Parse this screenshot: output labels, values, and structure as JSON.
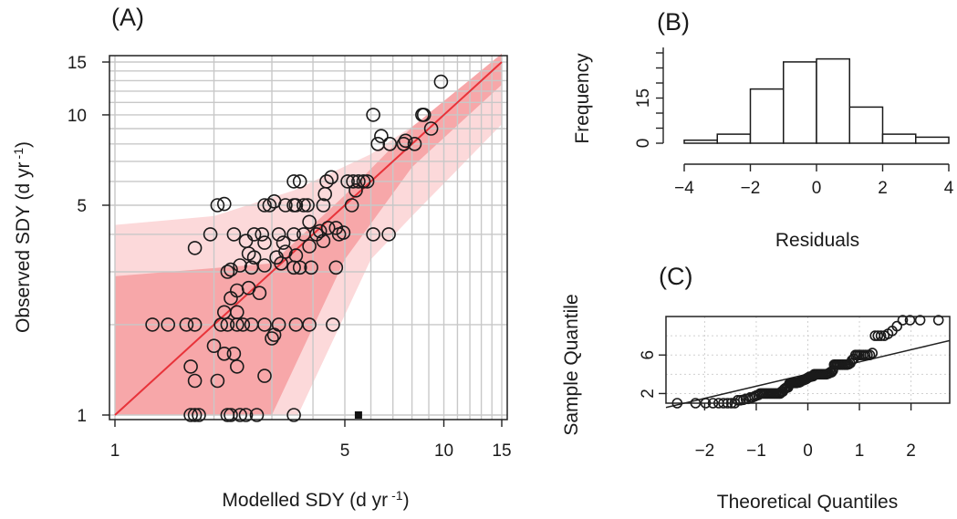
{
  "colors": {
    "regression_line": "#e8333a",
    "confidence_band": "#f7a7a9",
    "prediction_band": "#fcd9da",
    "points": "#1a1a1a"
  },
  "chart_data": [
    {
      "panel": "(A)",
      "type": "scatter",
      "xlabel": "Modelled SDY (d yr -1)",
      "ylabel": "Observed SDY (d yr -1)",
      "xscale": "log",
      "yscale": "log",
      "xlim": [
        1,
        15
      ],
      "ylim": [
        1,
        15
      ],
      "xticks": [
        1,
        5,
        10,
        15
      ],
      "yticks": [
        1,
        5,
        10,
        15
      ],
      "grid": true,
      "fit_line": [
        [
          1,
          1
        ],
        [
          15,
          15
        ]
      ],
      "confidence_band_lower": [
        [
          1,
          1
        ],
        [
          3,
          1
        ],
        [
          5,
          3.3
        ],
        [
          8,
          6.7
        ],
        [
          15,
          12.6
        ]
      ],
      "confidence_band_upper": [
        [
          1,
          2.9
        ],
        [
          3,
          3.2
        ],
        [
          5,
          5.4
        ],
        [
          8,
          9.1
        ],
        [
          15,
          16
        ]
      ],
      "prediction_band_lower": [
        [
          1,
          1
        ],
        [
          3.6,
          1
        ],
        [
          6,
          3.3
        ],
        [
          8,
          4.6
        ],
        [
          15,
          9.3
        ]
      ],
      "prediction_band_upper": [
        [
          1,
          4.3
        ],
        [
          2,
          4.6
        ],
        [
          3.5,
          5.6
        ],
        [
          6,
          7.4
        ],
        [
          10,
          10.8
        ],
        [
          15,
          16
        ]
      ],
      "points": [
        [
          1.7,
          1
        ],
        [
          1.75,
          1
        ],
        [
          1.8,
          1
        ],
        [
          2.2,
          1
        ],
        [
          2.25,
          1
        ],
        [
          2.4,
          1
        ],
        [
          2.5,
          1
        ],
        [
          2.7,
          1
        ],
        [
          3.5,
          1
        ],
        [
          1.75,
          1.3
        ],
        [
          2.05,
          1.3
        ],
        [
          1.7,
          1.45
        ],
        [
          2.35,
          1.45
        ],
        [
          2.85,
          1.35
        ],
        [
          2.15,
          1.6
        ],
        [
          2.3,
          1.6
        ],
        [
          2,
          1.7
        ],
        [
          3,
          1.8
        ],
        [
          3.05,
          1.85
        ],
        [
          1.3,
          2
        ],
        [
          1.45,
          2
        ],
        [
          1.65,
          2
        ],
        [
          1.75,
          2
        ],
        [
          2.1,
          2
        ],
        [
          2.2,
          2
        ],
        [
          2.35,
          2
        ],
        [
          2.45,
          2
        ],
        [
          2.6,
          2
        ],
        [
          2.85,
          2
        ],
        [
          3.15,
          2
        ],
        [
          3.55,
          2
        ],
        [
          3.9,
          2
        ],
        [
          4.6,
          2
        ],
        [
          2.15,
          2.2
        ],
        [
          2.35,
          2.2
        ],
        [
          2.25,
          2.45
        ],
        [
          2.35,
          2.6
        ],
        [
          2.55,
          2.65
        ],
        [
          2.75,
          2.55
        ],
        [
          2.2,
          3
        ],
        [
          2.25,
          3.05
        ],
        [
          2.4,
          3.15
        ],
        [
          2.6,
          3.1
        ],
        [
          2.85,
          3.15
        ],
        [
          3.2,
          3.2
        ],
        [
          3.5,
          3.1
        ],
        [
          3.65,
          3.1
        ],
        [
          3.95,
          3.1
        ],
        [
          4.7,
          3.1
        ],
        [
          2.55,
          3.45
        ],
        [
          2.65,
          3.35
        ],
        [
          3.1,
          3.35
        ],
        [
          3.3,
          3.5
        ],
        [
          3.55,
          3.4
        ],
        [
          3.9,
          3.65
        ],
        [
          4.3,
          3.8
        ],
        [
          1.75,
          3.6
        ],
        [
          2.5,
          3.8
        ],
        [
          2.85,
          3.75
        ],
        [
          3.25,
          3.75
        ],
        [
          2.3,
          4
        ],
        [
          2.65,
          4
        ],
        [
          2.8,
          4
        ],
        [
          3.15,
          4
        ],
        [
          3.5,
          4
        ],
        [
          3.75,
          4
        ],
        [
          4.1,
          4
        ],
        [
          4.2,
          4.1
        ],
        [
          4.45,
          4.2
        ],
        [
          4.7,
          4.2
        ],
        [
          4.95,
          4.05
        ],
        [
          4.8,
          4.0
        ],
        [
          6.1,
          4
        ],
        [
          6.8,
          4
        ],
        [
          1.95,
          4
        ],
        [
          3.9,
          4.4
        ],
        [
          2.85,
          5
        ],
        [
          2.95,
          5
        ],
        [
          3.3,
          5
        ],
        [
          3.5,
          5
        ],
        [
          3.55,
          5
        ],
        [
          3.75,
          5
        ],
        [
          3.85,
          5
        ],
        [
          4.3,
          5
        ],
        [
          5.25,
          5
        ],
        [
          2.15,
          5.05
        ],
        [
          2.05,
          5
        ],
        [
          3.05,
          5.15
        ],
        [
          3.5,
          6
        ],
        [
          3.65,
          6
        ],
        [
          4.4,
          6
        ],
        [
          5.1,
          6
        ],
        [
          5.3,
          6
        ],
        [
          5.5,
          6
        ],
        [
          5.7,
          6
        ],
        [
          5.85,
          6
        ],
        [
          4.55,
          6.2
        ],
        [
          5.4,
          5.6
        ],
        [
          4.35,
          5.45
        ],
        [
          6.3,
          8
        ],
        [
          6.85,
          8
        ],
        [
          7.55,
          8
        ],
        [
          7.65,
          8.2
        ],
        [
          6.45,
          8.5
        ],
        [
          8.15,
          8
        ],
        [
          9.15,
          9
        ],
        [
          8.6,
          10
        ],
        [
          8.7,
          10
        ],
        [
          6.1,
          10
        ],
        [
          9.8,
          12.9
        ]
      ],
      "special_points": [
        [
          5.5,
          1
        ]
      ]
    },
    {
      "panel": "(B)",
      "type": "bar",
      "xlabel": "Residuals",
      "ylabel": "Frequency",
      "xlim": [
        -4,
        4
      ],
      "xticks": [
        -4,
        -2,
        0,
        2,
        4
      ],
      "yticks": [
        0,
        15
      ],
      "bin_edges": [
        -4,
        -3,
        -2,
        -1,
        0,
        1,
        2,
        3,
        4
      ],
      "values": [
        1,
        3,
        18,
        27,
        28,
        12,
        3,
        2
      ]
    },
    {
      "panel": "(C)",
      "type": "scatter",
      "subtype": "qq",
      "xlabel": "Theoretical Quantiles",
      "ylabel": "Sample Quantile",
      "xlim": [
        -2.75,
        2.75
      ],
      "ylim": [
        1,
        10
      ],
      "xticks": [
        -2,
        -1,
        0,
        1,
        2
      ],
      "yticks": [
        2,
        6
      ],
      "reference_line": [
        [
          -2.75,
          0.55
        ],
        [
          2.75,
          7.5
        ]
      ]
    }
  ]
}
